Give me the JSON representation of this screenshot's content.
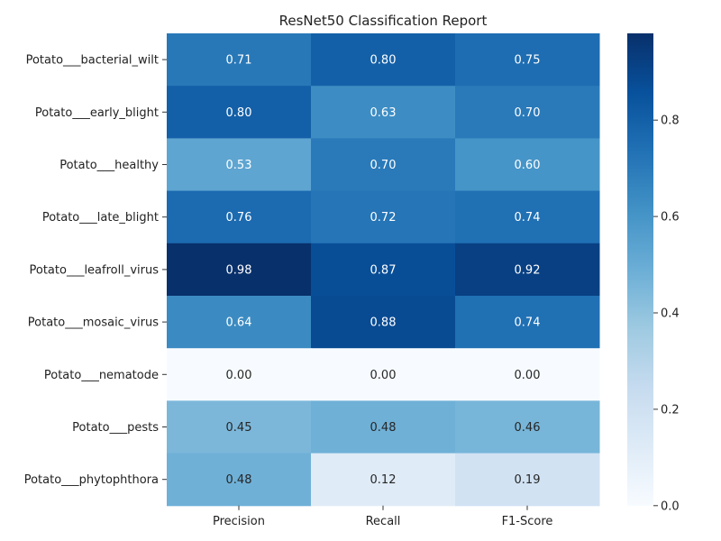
{
  "chart_data": {
    "type": "heatmap",
    "title": "ResNet50 Classification Report",
    "xlabel": "",
    "ylabel": "",
    "columns": [
      "Precision",
      "Recall",
      "F1-Score"
    ],
    "rows": [
      "Potato___bacterial_wilt",
      "Potato___early_blight",
      "Potato___healthy",
      "Potato___late_blight",
      "Potato___leafroll_virus",
      "Potato___mosaic_virus",
      "Potato___nematode",
      "Potato___pests",
      "Potato___phytophthora"
    ],
    "values": [
      [
        0.71,
        0.8,
        0.75
      ],
      [
        0.8,
        0.63,
        0.7
      ],
      [
        0.53,
        0.7,
        0.6
      ],
      [
        0.76,
        0.72,
        0.74
      ],
      [
        0.98,
        0.87,
        0.92
      ],
      [
        0.64,
        0.88,
        0.74
      ],
      [
        0.0,
        0.0,
        0.0
      ],
      [
        0.45,
        0.48,
        0.46
      ],
      [
        0.48,
        0.12,
        0.19
      ]
    ],
    "value_format": "2 decimals",
    "colorbar": {
      "colormap": "Blues",
      "vmin": 0.0,
      "vmax": 0.98,
      "ticks": [
        "0.0",
        "0.2",
        "0.4",
        "0.6",
        "0.8"
      ]
    }
  }
}
